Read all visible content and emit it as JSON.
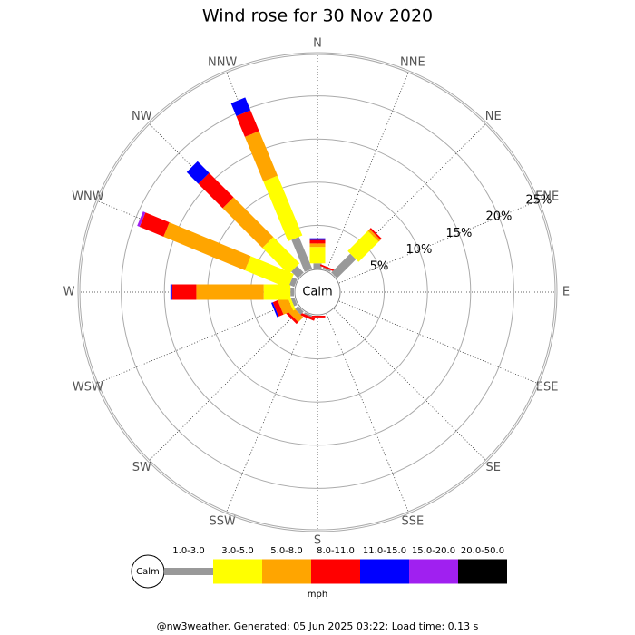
{
  "chart_data": {
    "type": "windrose",
    "title": "Wind rose for 30 Nov 2020",
    "calm_label": "Calm",
    "unit_label": "mph",
    "footer": "@nw3weather. Generated: 05 Jun 2025 03:22; Load time: 0.13 s",
    "categories": [
      "N",
      "NNE",
      "NE",
      "ENE",
      "E",
      "ESE",
      "SE",
      "SSE",
      "S",
      "SSW",
      "SW",
      "WSW",
      "W",
      "WNW",
      "NW",
      "NNW"
    ],
    "rlim": [
      0,
      25
    ],
    "rticks": [
      {
        "value": 5,
        "label": "5%"
      },
      {
        "value": 10,
        "label": "10%"
      },
      {
        "value": 15,
        "label": "15%"
      },
      {
        "value": 20,
        "label": "20%"
      },
      {
        "value": 25,
        "label": "25%"
      }
    ],
    "series": [
      {
        "name": "1.0-3.0",
        "color": "#999999",
        "values": [
          0.6,
          0.2,
          3.1,
          0,
          0,
          0,
          0,
          0,
          0,
          0.2,
          0.5,
          0.4,
          0.4,
          0.6,
          1.1,
          4.0
        ]
      },
      {
        "name": "3.0-5.0",
        "color": "#ffff00",
        "values": [
          1.9,
          0,
          3.3,
          0,
          0,
          0,
          0,
          0,
          0,
          0,
          0,
          0.3,
          3.1,
          5.4,
          4.3,
          7.5
        ]
      },
      {
        "name": "5.0-8.0",
        "color": "#ffa500",
        "values": [
          0.4,
          0,
          0.3,
          0,
          0,
          0,
          0,
          0,
          0,
          0,
          0.8,
          1.2,
          7.8,
          10.2,
          6.5,
          5.6
        ]
      },
      {
        "name": "8.0-11.0",
        "color": "#ff0000",
        "values": [
          0.4,
          0.2,
          0.2,
          0,
          0,
          0,
          0,
          0,
          0.2,
          0.3,
          0.3,
          0.6,
          2.8,
          3.0,
          4.0,
          2.6
        ]
      },
      {
        "name": "11.0-15.0",
        "color": "#0000ff",
        "values": [
          0.2,
          0,
          0,
          0,
          0,
          0,
          0,
          0,
          0,
          0,
          0,
          0.2,
          0.2,
          0,
          1.9,
          1.6
        ]
      },
      {
        "name": "15.0-20.0",
        "color": "#a020f0",
        "values": [
          0,
          0,
          0,
          0,
          0,
          0,
          0,
          0,
          0,
          0,
          0,
          0,
          0,
          0.3,
          0,
          0
        ]
      },
      {
        "name": "20.0-50.0",
        "color": "#000000",
        "values": [
          0,
          0,
          0,
          0,
          0,
          0,
          0,
          0,
          0,
          0,
          0,
          0,
          0,
          0,
          0,
          0
        ]
      }
    ]
  }
}
